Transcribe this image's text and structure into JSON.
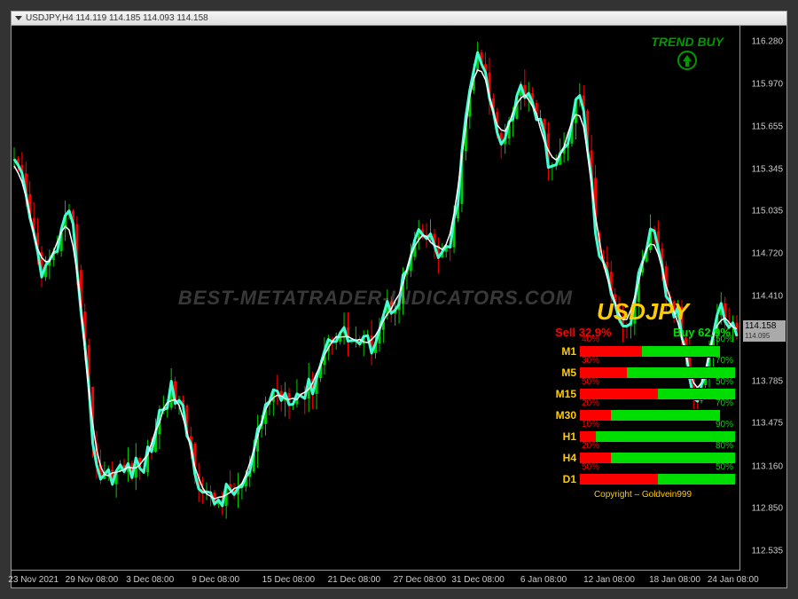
{
  "title": "USDJPY,H4   114.119 114.185 114.093 114.158",
  "watermark": "BEST-METATRADER-INDICATORS.COM",
  "trend": {
    "label": "TREND BUY",
    "color": "#009900"
  },
  "yaxis": {
    "min": 112.4,
    "max": 116.4,
    "ticks": [
      116.28,
      115.97,
      115.655,
      115.345,
      115.035,
      114.72,
      114.41,
      114.095,
      113.785,
      113.475,
      113.16,
      112.85,
      112.535
    ],
    "color": "#cccccc",
    "fontsize": 10
  },
  "xaxis": {
    "labels": [
      "23 Nov 2021",
      "29 Nov 08:00",
      "3 Dec 08:00",
      "9 Dec 08:00",
      "15 Dec 08:00",
      "21 Dec 08:00",
      "27 Dec 08:00",
      "31 Dec 08:00",
      "6 Jan 08:00",
      "12 Jan 08:00",
      "18 Jan 08:00",
      "24 Jan 08:00"
    ],
    "positions_pct": [
      3,
      11,
      19,
      28,
      38,
      47,
      56,
      64,
      73,
      82,
      91,
      99
    ]
  },
  "current_price": {
    "value": "114.158",
    "sub": "114.095"
  },
  "indicator_panel": {
    "symbol": "USDJPY",
    "sell_total": "Sell 32.9%",
    "buy_total": "Buy 62.9%",
    "rows": [
      {
        "tf": "M1",
        "sell": 40,
        "buy": 50
      },
      {
        "tf": "M5",
        "sell": 30,
        "buy": 70
      },
      {
        "tf": "M15",
        "sell": 50,
        "buy": 50
      },
      {
        "tf": "M30",
        "sell": 20,
        "buy": 70
      },
      {
        "tf": "H1",
        "sell": 10,
        "buy": 90
      },
      {
        "tf": "H4",
        "sell": 20,
        "buy": 80
      },
      {
        "tf": "D1",
        "sell": 50,
        "buy": 50
      }
    ],
    "copyright": "Copyright – Goldvein999",
    "title_color": "#ffcc00",
    "sell_color": "#ff0000",
    "buy_color": "#00dd00"
  },
  "chart": {
    "type": "candlestick+line",
    "background": "#000000",
    "up_color": "#00cc00",
    "down_color": "#ff0000",
    "ma_color_1": "#40ffd0",
    "ma_color_2": "#ffffff",
    "ma_width": 2,
    "candle_width": 3,
    "data_comment": "x is bar index 0..180 approx; o/h/l/c in price units, generated to visually match screenshot",
    "ohlc": [],
    "ma": []
  }
}
